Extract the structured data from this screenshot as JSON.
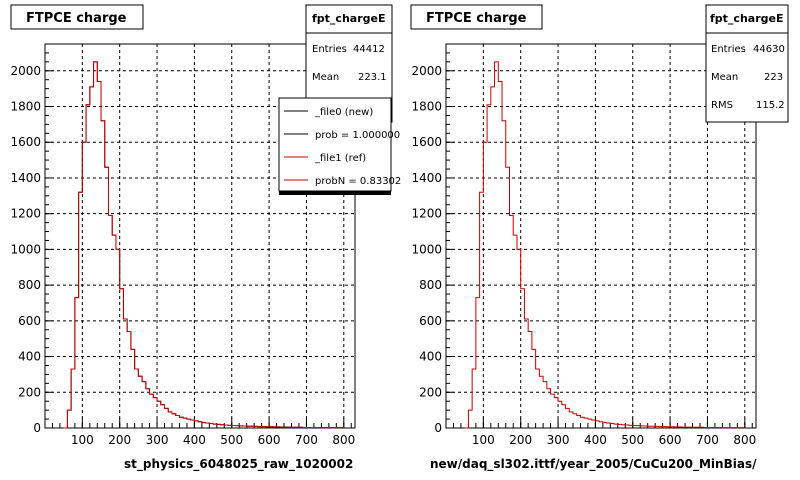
{
  "colors": {
    "new": "#000000",
    "ref": "#cc0000",
    "background": "#ffffff"
  },
  "chart_data": [
    {
      "type": "histogram",
      "title": "FTPCE charge",
      "xlabel": "st_physics_6048025_raw_1020002",
      "ylabel": "",
      "xlim": [
        0,
        830
      ],
      "ylim": [
        0,
        2150
      ],
      "xticks": [
        100,
        200,
        300,
        400,
        500,
        600,
        700,
        800
      ],
      "yticks": [
        0,
        200,
        400,
        600,
        800,
        1000,
        1200,
        1400,
        1600,
        1800,
        2000
      ],
      "grid": true,
      "bin_width": 10,
      "x_start": 50,
      "stats": {
        "name": "fpt_chargeE",
        "rows": [
          {
            "label": "Entries",
            "value": "44412"
          },
          {
            "label": "Mean",
            "value": "223.1"
          }
        ]
      },
      "legend": {
        "entries": [
          {
            "label": "_file0 (new)",
            "series": 0
          },
          {
            "label": "prob = 1.000000",
            "series": 0
          },
          {
            "label": "_file1 (ref)",
            "series": 1
          },
          {
            "label": "probN = 0.83302",
            "series": 1
          }
        ]
      },
      "series": [
        {
          "name": "_file0 (new)",
          "color": "new",
          "values": [
            0,
            100,
            330,
            730,
            1320,
            1600,
            1810,
            1910,
            2050,
            1940,
            1720,
            1460,
            1190,
            1080,
            1000,
            780,
            610,
            540,
            440,
            330,
            290,
            260,
            220,
            190,
            170,
            150,
            130,
            110,
            90,
            80,
            70,
            60,
            55,
            50,
            45,
            40,
            35,
            30,
            28,
            25,
            22,
            20,
            18,
            17,
            15,
            14,
            13,
            12,
            11,
            10,
            10,
            9,
            8,
            8,
            7,
            7,
            6,
            6,
            5,
            5,
            5,
            4,
            4,
            4,
            3,
            3,
            3,
            3,
            3,
            2,
            2,
            2,
            2,
            2,
            2
          ]
        },
        {
          "name": "_file1 (ref)",
          "color": "ref",
          "values": [
            0,
            100,
            330,
            730,
            1320,
            1600,
            1810,
            1910,
            2050,
            1940,
            1720,
            1460,
            1190,
            1080,
            1000,
            780,
            610,
            540,
            440,
            330,
            290,
            260,
            220,
            190,
            170,
            150,
            130,
            110,
            90,
            80,
            70,
            60,
            55,
            50,
            45,
            40,
            35,
            30,
            28,
            25,
            22,
            20,
            18,
            17,
            15,
            14,
            13,
            12,
            11,
            10,
            10,
            9,
            8,
            8,
            7,
            7,
            6,
            6,
            5,
            5,
            5,
            4,
            4,
            4,
            3,
            3,
            3,
            3,
            3,
            2,
            2,
            2,
            2,
            2,
            2
          ]
        }
      ]
    },
    {
      "type": "histogram",
      "title": "FTPCE charge",
      "xlabel": "new/daq_sl302.ittf/year_2005/CuCu200_MinBias/",
      "ylabel": "",
      "xlim": [
        0,
        830
      ],
      "ylim": [
        0,
        2150
      ],
      "xticks": [
        100,
        200,
        300,
        400,
        500,
        600,
        700,
        800
      ],
      "yticks": [
        0,
        200,
        400,
        600,
        800,
        1000,
        1200,
        1400,
        1600,
        1800,
        2000
      ],
      "grid": true,
      "bin_width": 10,
      "x_start": 50,
      "stats": {
        "name": "fpt_chargeE",
        "rows": [
          {
            "label": "Entries",
            "value": "44630"
          },
          {
            "label": "Mean",
            "value": "223"
          },
          {
            "label": "RMS",
            "value": "115.2"
          }
        ]
      },
      "series": [
        {
          "name": "",
          "color": "ref",
          "values": [
            0,
            100,
            330,
            730,
            1320,
            1600,
            1810,
            1910,
            2050,
            1940,
            1720,
            1460,
            1190,
            1080,
            1000,
            780,
            610,
            540,
            440,
            330,
            290,
            260,
            220,
            190,
            170,
            150,
            130,
            110,
            90,
            80,
            70,
            60,
            55,
            50,
            45,
            40,
            35,
            30,
            28,
            25,
            22,
            20,
            18,
            17,
            15,
            14,
            13,
            12,
            11,
            10,
            10,
            9,
            8,
            8,
            7,
            7,
            6,
            6,
            5,
            5,
            5,
            4,
            4,
            4,
            3,
            3,
            3,
            3,
            3,
            2,
            2,
            2,
            2,
            2,
            2
          ]
        }
      ]
    }
  ]
}
